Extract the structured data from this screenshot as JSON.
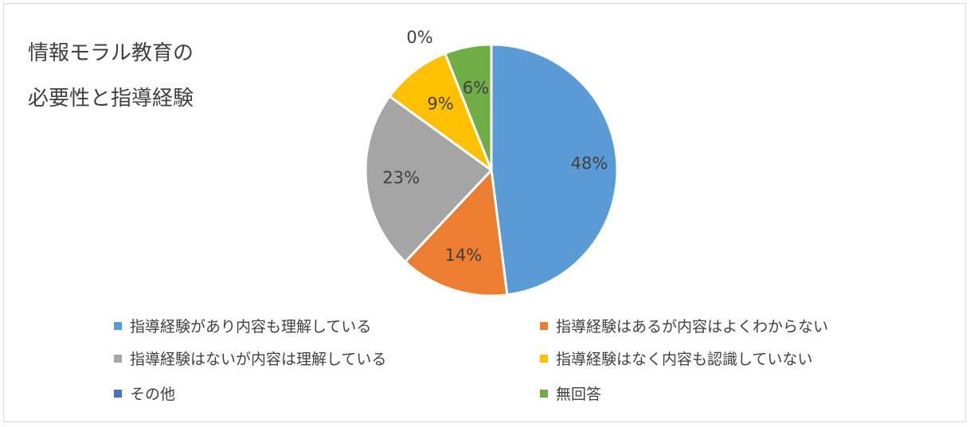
{
  "chart_data": {
    "type": "pie",
    "title_lines": [
      "情報モラル教育の",
      "必要性と指導経験"
    ],
    "slices": [
      {
        "name": "指導経験があり内容も理解している",
        "value": 48,
        "label": "48%",
        "color": "#5b9bd5"
      },
      {
        "name": "指導経験はあるが内容はよくわからない",
        "value": 14,
        "label": "14%",
        "color": "#ed7d31"
      },
      {
        "name": "指導経験はないが内容は理解している",
        "value": 23,
        "label": "23%",
        "color": "#a5a5a5"
      },
      {
        "name": "指導経験はなく内容も認識していない",
        "value": 9,
        "label": "9%",
        "color": "#ffc000"
      },
      {
        "name": "その他",
        "value": 0,
        "label": "0%",
        "color": "#4472c4"
      },
      {
        "name": "無回答",
        "value": 6,
        "label": "6%",
        "color": "#70ad47"
      }
    ],
    "legend_position": "bottom"
  }
}
